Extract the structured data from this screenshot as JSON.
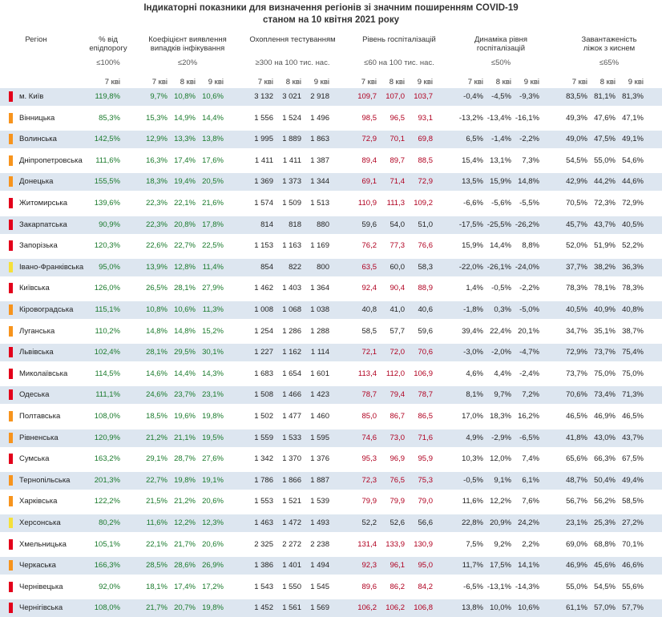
{
  "title_line1": "Індикаторні показники для визначення регіонів зі значним поширенням COVID-19",
  "title_line2": "станом на 10 квітня 2021 року",
  "headers": {
    "region": "Регіон",
    "epi": {
      "l1": "% від",
      "l2": "епідпорогу",
      "lim": "≤100%"
    },
    "coef": {
      "l1": "Коефіцієнт виявлення",
      "l2": "випадків інфікування",
      "lim": "≤20%"
    },
    "test": {
      "l1": "Охоплення тестуванням",
      "lim": "≥300 на 100 тис. нас."
    },
    "hosp": {
      "l1": "Рівень госпіталізацій",
      "lim": "≤60 на 100 тис. нас."
    },
    "dyn": {
      "l1": "Динаміка рівня",
      "l2": "госпіталізацій",
      "lim": "≤50%"
    },
    "beds": {
      "l1": "Завантаженість",
      "l2": "ліжок з киснем",
      "lim": "≤65%"
    }
  },
  "subheaders": {
    "w7": "7 кві",
    "w8": "8 кві",
    "w9": "9 кві"
  },
  "colors": {
    "red": "#e3001b",
    "orange": "#f7941d",
    "yellow": "#f5e03a",
    "band": "#dde6f0",
    "green_text": "#1a7a2c",
    "red_text": "#b00020"
  },
  "rows": [
    {
      "name": "м. Київ",
      "marker": "red",
      "epi": "119,8%",
      "coef": [
        "9,7%",
        "10,8%",
        "10,6%"
      ],
      "test": [
        "3 132",
        "3 021",
        "2 918"
      ],
      "hosp": [
        "109,7",
        "107,0",
        "103,7"
      ],
      "dyn": [
        "-0,4%",
        "-4,5%",
        "-9,3%"
      ],
      "beds": [
        "83,5%",
        "81,1%",
        "81,3%"
      ]
    },
    {
      "name": "Вінницька",
      "marker": "orange",
      "epi": "85,3%",
      "coef": [
        "15,3%",
        "14,9%",
        "14,4%"
      ],
      "test": [
        "1 556",
        "1 524",
        "1 496"
      ],
      "hosp": [
        "98,5",
        "96,5",
        "93,1"
      ],
      "dyn": [
        "-13,2%",
        "-13,4%",
        "-16,1%"
      ],
      "beds": [
        "49,3%",
        "47,6%",
        "47,1%"
      ]
    },
    {
      "name": "Волинська",
      "marker": "orange",
      "epi": "142,5%",
      "coef": [
        "12,9%",
        "13,3%",
        "13,8%"
      ],
      "test": [
        "1 995",
        "1 889",
        "1 863"
      ],
      "hosp": [
        "72,9",
        "70,1",
        "69,8"
      ],
      "dyn": [
        "6,5%",
        "-1,4%",
        "-2,2%"
      ],
      "beds": [
        "49,0%",
        "47,5%",
        "49,1%"
      ]
    },
    {
      "name": "Дніпропетровська",
      "marker": "orange",
      "epi": "111,6%",
      "coef": [
        "16,3%",
        "17,4%",
        "17,6%"
      ],
      "test": [
        "1 411",
        "1 411",
        "1 387"
      ],
      "hosp": [
        "89,4",
        "89,7",
        "88,5"
      ],
      "dyn": [
        "15,4%",
        "13,1%",
        "7,3%"
      ],
      "beds": [
        "54,5%",
        "55,0%",
        "54,6%"
      ]
    },
    {
      "name": "Донецька",
      "marker": "orange",
      "epi": "155,5%",
      "coef": [
        "18,3%",
        "19,4%",
        "20,5%"
      ],
      "test": [
        "1 369",
        "1 373",
        "1 344"
      ],
      "hosp": [
        "69,1",
        "71,4",
        "72,9"
      ],
      "dyn": [
        "13,5%",
        "15,9%",
        "14,8%"
      ],
      "beds": [
        "42,9%",
        "44,2%",
        "44,6%"
      ]
    },
    {
      "name": "Житомирська",
      "marker": "red",
      "epi": "139,6%",
      "coef": [
        "22,3%",
        "22,1%",
        "21,6%"
      ],
      "test": [
        "1 574",
        "1 509",
        "1 513"
      ],
      "hosp": [
        "110,9",
        "111,3",
        "109,2"
      ],
      "dyn": [
        "-6,6%",
        "-5,6%",
        "-5,5%"
      ],
      "beds": [
        "70,5%",
        "72,3%",
        "72,9%"
      ]
    },
    {
      "name": "Закарпатська",
      "marker": "red",
      "epi": "90,9%",
      "coef": [
        "22,3%",
        "20,8%",
        "17,8%"
      ],
      "test": [
        "814",
        "818",
        "880"
      ],
      "hosp": [
        "59,6",
        "54,0",
        "51,0"
      ],
      "dyn": [
        "-17,5%",
        "-25,5%",
        "-26,2%"
      ],
      "beds": [
        "45,7%",
        "43,7%",
        "40,5%"
      ]
    },
    {
      "name": "Запорізька",
      "marker": "red",
      "epi": "120,3%",
      "coef": [
        "22,6%",
        "22,7%",
        "22,5%"
      ],
      "test": [
        "1 153",
        "1 163",
        "1 169"
      ],
      "hosp": [
        "76,2",
        "77,3",
        "76,6"
      ],
      "dyn": [
        "15,9%",
        "14,4%",
        "8,8%"
      ],
      "beds": [
        "52,0%",
        "51,9%",
        "52,2%"
      ]
    },
    {
      "name": "Івано-Франківська",
      "marker": "yellow",
      "epi": "95,0%",
      "coef": [
        "13,9%",
        "12,8%",
        "11,4%"
      ],
      "test": [
        "854",
        "822",
        "800"
      ],
      "hosp": [
        "63,5",
        "60,0",
        "58,3"
      ],
      "dyn": [
        "-22,0%",
        "-26,1%",
        "-24,0%"
      ],
      "beds": [
        "37,7%",
        "38,2%",
        "36,3%"
      ]
    },
    {
      "name": "Київська",
      "marker": "red",
      "epi": "126,0%",
      "coef": [
        "26,5%",
        "28,1%",
        "27,9%"
      ],
      "test": [
        "1 462",
        "1 403",
        "1 364"
      ],
      "hosp": [
        "92,4",
        "90,4",
        "88,9"
      ],
      "dyn": [
        "1,4%",
        "-0,5%",
        "-2,2%"
      ],
      "beds": [
        "78,3%",
        "78,1%",
        "78,3%"
      ]
    },
    {
      "name": "Кіровоградська",
      "marker": "orange",
      "epi": "115,1%",
      "coef": [
        "10,8%",
        "10,6%",
        "11,3%"
      ],
      "test": [
        "1 008",
        "1 068",
        "1 038"
      ],
      "hosp": [
        "40,8",
        "41,0",
        "40,6"
      ],
      "dyn": [
        "-1,8%",
        "0,3%",
        "-5,0%"
      ],
      "beds": [
        "40,5%",
        "40,9%",
        "40,8%"
      ]
    },
    {
      "name": "Луганська",
      "marker": "orange",
      "epi": "110,2%",
      "coef": [
        "14,8%",
        "14,8%",
        "15,2%"
      ],
      "test": [
        "1 254",
        "1 286",
        "1 288"
      ],
      "hosp": [
        "58,5",
        "57,7",
        "59,6"
      ],
      "dyn": [
        "39,4%",
        "22,4%",
        "20,1%"
      ],
      "beds": [
        "34,7%",
        "35,1%",
        "38,7%"
      ]
    },
    {
      "name": "Львівська",
      "marker": "red",
      "epi": "102,4%",
      "coef": [
        "28,1%",
        "29,5%",
        "30,1%"
      ],
      "test": [
        "1 227",
        "1 162",
        "1 114"
      ],
      "hosp": [
        "72,1",
        "72,0",
        "70,6"
      ],
      "dyn": [
        "-3,0%",
        "-2,0%",
        "-4,7%"
      ],
      "beds": [
        "72,9%",
        "73,7%",
        "75,4%"
      ]
    },
    {
      "name": "Миколаївська",
      "marker": "red",
      "epi": "114,5%",
      "coef": [
        "14,6%",
        "14,4%",
        "14,3%"
      ],
      "test": [
        "1 683",
        "1 654",
        "1 601"
      ],
      "hosp": [
        "113,4",
        "112,0",
        "106,9"
      ],
      "dyn": [
        "4,6%",
        "4,4%",
        "-2,4%"
      ],
      "beds": [
        "73,7%",
        "75,0%",
        "75,0%"
      ]
    },
    {
      "name": "Одеська",
      "marker": "red",
      "epi": "111,1%",
      "coef": [
        "24,6%",
        "23,7%",
        "23,1%"
      ],
      "test": [
        "1 508",
        "1 466",
        "1 423"
      ],
      "hosp": [
        "78,7",
        "79,4",
        "78,7"
      ],
      "dyn": [
        "8,1%",
        "9,7%",
        "7,2%"
      ],
      "beds": [
        "70,6%",
        "73,4%",
        "71,3%"
      ]
    },
    {
      "name": "Полтавська",
      "marker": "orange",
      "epi": "108,0%",
      "coef": [
        "18,5%",
        "19,6%",
        "19,8%"
      ],
      "test": [
        "1 502",
        "1 477",
        "1 460"
      ],
      "hosp": [
        "85,0",
        "86,7",
        "86,5"
      ],
      "dyn": [
        "17,0%",
        "18,3%",
        "16,2%"
      ],
      "beds": [
        "46,5%",
        "46,9%",
        "46,5%"
      ]
    },
    {
      "name": "Рівненська",
      "marker": "orange",
      "epi": "120,9%",
      "coef": [
        "21,2%",
        "21,1%",
        "19,5%"
      ],
      "test": [
        "1 559",
        "1 533",
        "1 595"
      ],
      "hosp": [
        "74,6",
        "73,0",
        "71,6"
      ],
      "dyn": [
        "4,9%",
        "-2,9%",
        "-6,5%"
      ],
      "beds": [
        "41,8%",
        "43,0%",
        "43,7%"
      ]
    },
    {
      "name": "Сумська",
      "marker": "red",
      "epi": "163,2%",
      "coef": [
        "29,1%",
        "28,7%",
        "27,6%"
      ],
      "test": [
        "1 342",
        "1 370",
        "1 376"
      ],
      "hosp": [
        "95,3",
        "96,9",
        "95,9"
      ],
      "dyn": [
        "10,3%",
        "12,0%",
        "7,4%"
      ],
      "beds": [
        "65,6%",
        "66,3%",
        "67,5%"
      ]
    },
    {
      "name": "Тернопільська",
      "marker": "orange",
      "epi": "201,3%",
      "coef": [
        "22,7%",
        "19,8%",
        "19,1%"
      ],
      "test": [
        "1 786",
        "1 866",
        "1 887"
      ],
      "hosp": [
        "72,3",
        "76,5",
        "75,3"
      ],
      "dyn": [
        "-0,5%",
        "9,1%",
        "6,1%"
      ],
      "beds": [
        "48,7%",
        "50,4%",
        "49,4%"
      ]
    },
    {
      "name": "Харківська",
      "marker": "orange",
      "epi": "122,2%",
      "coef": [
        "21,5%",
        "21,2%",
        "20,6%"
      ],
      "test": [
        "1 553",
        "1 521",
        "1 539"
      ],
      "hosp": [
        "79,9",
        "79,9",
        "79,0"
      ],
      "dyn": [
        "11,6%",
        "12,2%",
        "7,6%"
      ],
      "beds": [
        "56,7%",
        "56,2%",
        "58,5%"
      ]
    },
    {
      "name": "Херсонська",
      "marker": "yellow",
      "epi": "80,2%",
      "coef": [
        "11,6%",
        "12,2%",
        "12,3%"
      ],
      "test": [
        "1 463",
        "1 472",
        "1 493"
      ],
      "hosp": [
        "52,2",
        "52,6",
        "56,6"
      ],
      "dyn": [
        "22,8%",
        "20,9%",
        "24,2%"
      ],
      "beds": [
        "23,1%",
        "25,3%",
        "27,2%"
      ]
    },
    {
      "name": "Хмельницька",
      "marker": "red",
      "epi": "105,1%",
      "coef": [
        "22,1%",
        "21,7%",
        "20,6%"
      ],
      "test": [
        "2 325",
        "2 272",
        "2 238"
      ],
      "hosp": [
        "131,4",
        "133,9",
        "130,9"
      ],
      "dyn": [
        "7,5%",
        "9,2%",
        "2,2%"
      ],
      "beds": [
        "69,0%",
        "68,8%",
        "70,1%"
      ]
    },
    {
      "name": "Черкаська",
      "marker": "orange",
      "epi": "166,3%",
      "coef": [
        "28,5%",
        "28,6%",
        "26,9%"
      ],
      "test": [
        "1 386",
        "1 401",
        "1 494"
      ],
      "hosp": [
        "92,3",
        "96,1",
        "95,0"
      ],
      "dyn": [
        "11,7%",
        "17,5%",
        "14,1%"
      ],
      "beds": [
        "46,9%",
        "45,6%",
        "46,6%"
      ]
    },
    {
      "name": "Чернівецька",
      "marker": "red",
      "epi": "92,0%",
      "coef": [
        "18,1%",
        "17,4%",
        "17,2%"
      ],
      "test": [
        "1 543",
        "1 550",
        "1 545"
      ],
      "hosp": [
        "89,6",
        "86,2",
        "84,2"
      ],
      "dyn": [
        "-6,5%",
        "-13,1%",
        "-14,3%"
      ],
      "beds": [
        "55,0%",
        "54,5%",
        "55,6%"
      ]
    },
    {
      "name": "Чернігівська",
      "marker": "red",
      "epi": "108,0%",
      "coef": [
        "21,7%",
        "20,7%",
        "19,8%"
      ],
      "test": [
        "1 452",
        "1 561",
        "1 569"
      ],
      "hosp": [
        "106,2",
        "106,2",
        "106,8"
      ],
      "dyn": [
        "13,8%",
        "10,0%",
        "10,6%"
      ],
      "beds": [
        "61,1%",
        "57,0%",
        "57,7%"
      ]
    }
  ]
}
